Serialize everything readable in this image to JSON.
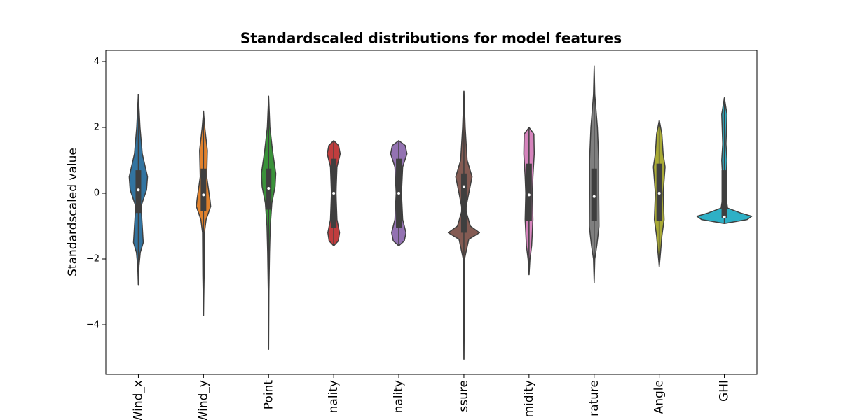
{
  "chart_data": {
    "type": "violin",
    "title": "Standardscaled distributions for model features",
    "y_label": "Standardscaled value",
    "categories": [
      "Wind_x",
      "Wind_y",
      "Point",
      "nality",
      "nality",
      "ssure",
      "midity",
      "rature",
      "Angle",
      "GHI"
    ],
    "colors": [
      "#3274a1",
      "#e1812c",
      "#3a923a",
      "#c03d3e",
      "#9372b2",
      "#845b53",
      "#d684bd",
      "#7f7f7f",
      "#a9aa35",
      "#2eb0c6"
    ],
    "ylim": [
      -5.51,
      4.34
    ],
    "yticks": [
      {
        "value": -4,
        "label": "−4"
      },
      {
        "value": -2,
        "label": "−2"
      },
      0,
      2,
      4
    ],
    "violins": [
      {
        "min": -2.78,
        "max": 3.0,
        "q1": -0.6,
        "median": 0.1,
        "q3": 0.7,
        "profile": [
          [
            3.0,
            0
          ],
          [
            2.0,
            0.05
          ],
          [
            1.2,
            0.12
          ],
          [
            0.5,
            0.28
          ],
          [
            0.1,
            0.25
          ],
          [
            -0.4,
            0.08
          ],
          [
            -1.0,
            0.12
          ],
          [
            -1.5,
            0.15
          ],
          [
            -1.8,
            0.06
          ],
          [
            -2.2,
            0.02
          ],
          [
            -2.78,
            0
          ]
        ]
      },
      {
        "min": -3.72,
        "max": 2.5,
        "q1": -0.55,
        "median": -0.05,
        "q3": 0.75,
        "profile": [
          [
            2.5,
            0
          ],
          [
            2.0,
            0.04
          ],
          [
            1.3,
            0.12
          ],
          [
            0.5,
            0.1
          ],
          [
            -0.2,
            0.2
          ],
          [
            -0.4,
            0.22
          ],
          [
            -0.8,
            0.08
          ],
          [
            -1.2,
            0.03
          ],
          [
            -2.5,
            0.02
          ],
          [
            -3.72,
            0
          ]
        ]
      },
      {
        "min": -4.75,
        "max": 2.95,
        "q1": -0.5,
        "median": 0.15,
        "q3": 0.75,
        "profile": [
          [
            2.95,
            0
          ],
          [
            2.0,
            0.04
          ],
          [
            1.3,
            0.12
          ],
          [
            0.6,
            0.22
          ],
          [
            0.2,
            0.2
          ],
          [
            -0.3,
            0.1
          ],
          [
            -1.0,
            0.05
          ],
          [
            -1.8,
            0.03
          ],
          [
            -3.0,
            0.01
          ],
          [
            -4.75,
            0
          ]
        ]
      },
      {
        "min": -1.6,
        "max": 1.6,
        "q1": -1.05,
        "median": 0,
        "q3": 1.05,
        "profile": [
          [
            1.6,
            0
          ],
          [
            1.45,
            0.15
          ],
          [
            1.2,
            0.2
          ],
          [
            0.8,
            0.1
          ],
          [
            0,
            0.07
          ],
          [
            -0.8,
            0.1
          ],
          [
            -1.2,
            0.18
          ],
          [
            -1.45,
            0.14
          ],
          [
            -1.6,
            0
          ]
        ]
      },
      {
        "min": -1.6,
        "max": 1.6,
        "q1": -1.05,
        "median": 0,
        "q3": 1.05,
        "profile": [
          [
            1.6,
            0
          ],
          [
            1.45,
            0.2
          ],
          [
            1.2,
            0.25
          ],
          [
            0.8,
            0.12
          ],
          [
            0,
            0.08
          ],
          [
            -0.8,
            0.12
          ],
          [
            -1.2,
            0.22
          ],
          [
            -1.45,
            0.17
          ],
          [
            -1.6,
            0
          ]
        ]
      },
      {
        "min": -5.05,
        "max": 3.1,
        "q1": -1.2,
        "median": 0.2,
        "q3": 0.6,
        "profile": [
          [
            3.1,
            0
          ],
          [
            2.0,
            0.04
          ],
          [
            1.0,
            0.1
          ],
          [
            0.5,
            0.25
          ],
          [
            0,
            0.15
          ],
          [
            -0.5,
            0.05
          ],
          [
            -1.0,
            0.2
          ],
          [
            -1.2,
            0.48
          ],
          [
            -1.4,
            0.15
          ],
          [
            -2.0,
            0.02
          ],
          [
            -3.0,
            0.02
          ],
          [
            -5.05,
            0
          ]
        ]
      },
      {
        "min": -2.48,
        "max": 2.0,
        "q1": -0.85,
        "median": -0.05,
        "q3": 0.9,
        "profile": [
          [
            2.0,
            0
          ],
          [
            1.8,
            0.15
          ],
          [
            1.2,
            0.16
          ],
          [
            0.5,
            0.12
          ],
          [
            0,
            0.1
          ],
          [
            -0.8,
            0.12
          ],
          [
            -1.6,
            0.08
          ],
          [
            -2.0,
            0.03
          ],
          [
            -2.48,
            0
          ]
        ]
      },
      {
        "min": -2.73,
        "max": 3.87,
        "q1": -0.85,
        "median": -0.1,
        "q3": 0.75,
        "profile": [
          [
            3.87,
            0
          ],
          [
            3.0,
            0.02
          ],
          [
            2.0,
            0.1
          ],
          [
            1.0,
            0.14
          ],
          [
            0,
            0.14
          ],
          [
            -1.0,
            0.15
          ],
          [
            -1.6,
            0.08
          ],
          [
            -2.0,
            0.02
          ],
          [
            -2.73,
            0
          ]
        ]
      },
      {
        "min": -2.23,
        "max": 2.22,
        "q1": -0.85,
        "median": 0,
        "q3": 0.9,
        "profile": [
          [
            2.22,
            0
          ],
          [
            1.8,
            0.08
          ],
          [
            1.2,
            0.12
          ],
          [
            0.8,
            0.18
          ],
          [
            0,
            0.12
          ],
          [
            -0.8,
            0.15
          ],
          [
            -1.3,
            0.08
          ],
          [
            -1.8,
            0.04
          ],
          [
            -2.23,
            0
          ]
        ]
      },
      {
        "min": -0.92,
        "max": 2.9,
        "q1": -0.75,
        "median": -0.72,
        "q3": 0.7,
        "profile": [
          [
            2.9,
            0
          ],
          [
            2.4,
            0.08
          ],
          [
            1.5,
            0.05
          ],
          [
            1.0,
            0.08
          ],
          [
            0,
            0.03
          ],
          [
            -0.45,
            0.1
          ],
          [
            -0.6,
            0.5
          ],
          [
            -0.7,
            0.84
          ],
          [
            -0.8,
            0.7
          ],
          [
            -0.92,
            0
          ]
        ]
      }
    ]
  }
}
